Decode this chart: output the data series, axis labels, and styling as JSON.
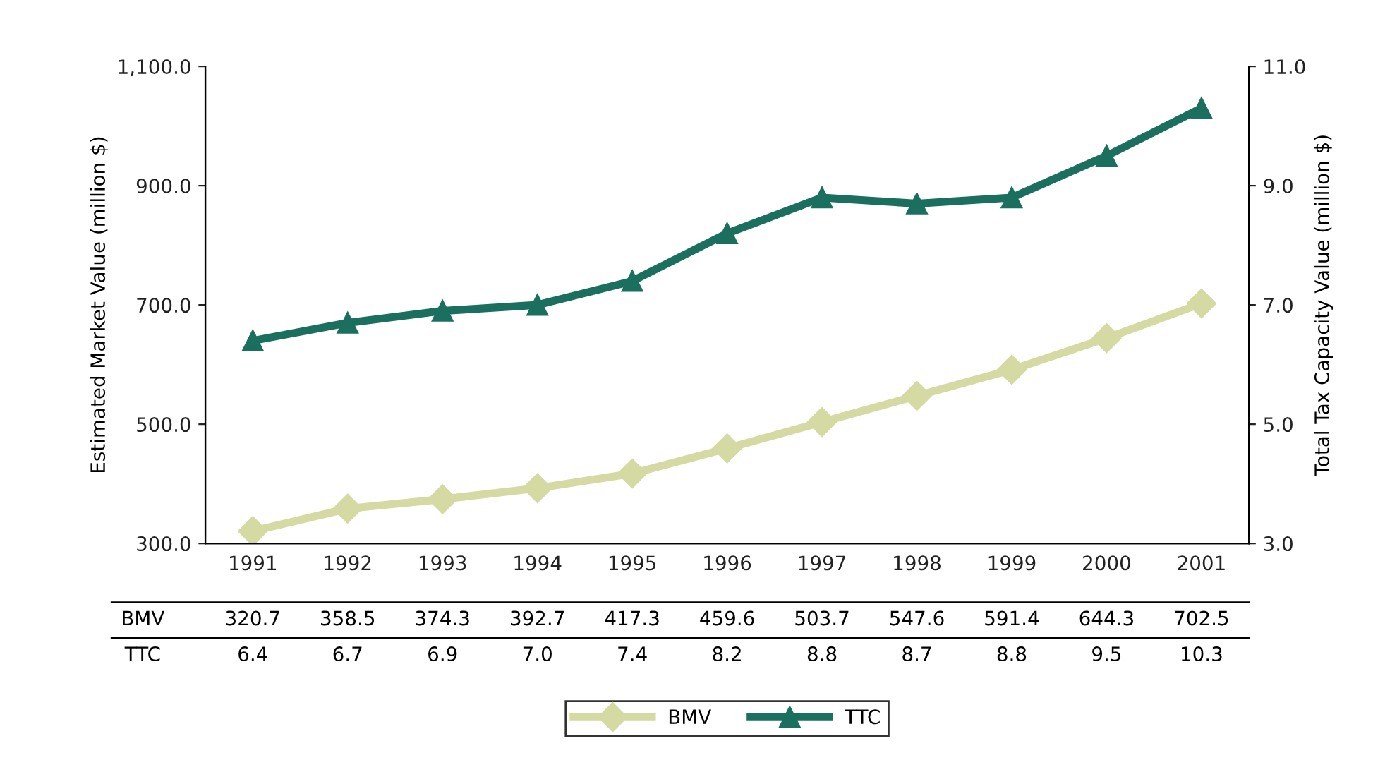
{
  "chart_data": {
    "type": "line",
    "ylabel": "Estimated Market Value (million $)",
    "y2label": "Total Tax Capacity Value (million $)",
    "categories": [
      "1991",
      "1992",
      "1993",
      "1994",
      "1995",
      "1996",
      "1997",
      "1998",
      "1999",
      "2000",
      "2001"
    ],
    "series": [
      {
        "name": "BMV",
        "color": "#d5d9a2",
        "marker": "diamond",
        "values": [
          320.7,
          358.5,
          374.3,
          392.7,
          417.3,
          459.6,
          503.7,
          547.6,
          591.4,
          644.3,
          702.5
        ],
        "value_labels": [
          "320.7",
          "358.5",
          "374.3",
          "392.7",
          "417.3",
          "459.6",
          "503.7",
          "547.6",
          "591.4",
          "644.3",
          "702.5"
        ]
      },
      {
        "name": "TTC",
        "color": "#1b6f5e",
        "marker": "triangle",
        "axis": "y2",
        "values": [
          6.4,
          6.7,
          6.9,
          7.0,
          7.4,
          8.2,
          8.8,
          8.7,
          8.8,
          9.5,
          10.3
        ],
        "value_labels": [
          "6.4",
          "6.7",
          "6.9",
          "7.0",
          "7.4",
          "8.2",
          "8.8",
          "8.7",
          "8.8",
          "9.5",
          "10.3"
        ]
      }
    ],
    "ylim": [
      300,
      1100
    ],
    "yticks": [
      {
        "value": 300,
        "label": "300.0"
      },
      {
        "value": 500,
        "label": "500.0"
      },
      {
        "value": 700,
        "label": "700.0"
      },
      {
        "value": 900,
        "label": "900.0"
      },
      {
        "value": 1100,
        "label": "1,100.0"
      }
    ],
    "y2lim": [
      3,
      11
    ],
    "y2ticks": [
      {
        "value": 3,
        "label": "3.0"
      },
      {
        "value": 5,
        "label": "5.0"
      },
      {
        "value": 7,
        "label": "7.0"
      },
      {
        "value": 9,
        "label": "9.0"
      },
      {
        "value": 11,
        "label": "11.0"
      }
    ],
    "grid": false,
    "legend": "bottom"
  }
}
